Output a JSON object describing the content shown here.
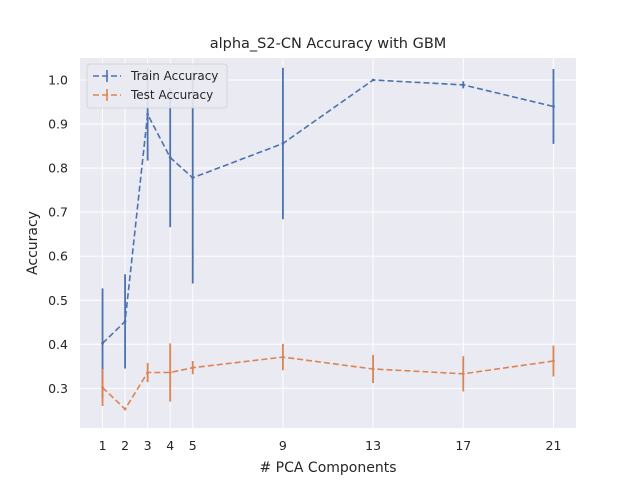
{
  "chart_data": {
    "type": "line",
    "title": "alpha_S2-CN Accuracy with GBM",
    "xlabel": "# PCA Components",
    "ylabel": "Accuracy",
    "x": [
      1,
      2,
      3,
      4,
      5,
      9,
      13,
      17,
      21
    ],
    "x_ticks": [
      1,
      2,
      3,
      4,
      5,
      9,
      13,
      17,
      21
    ],
    "y_ticks": [
      0.3,
      0.4,
      0.5,
      0.6,
      0.7,
      0.8,
      0.9,
      1.0
    ],
    "y_tick_labels": [
      "0.3",
      "0.4",
      "0.5",
      "0.6",
      "0.7",
      "0.8",
      "0.9",
      "1.0"
    ],
    "xlim": [
      0.0,
      22.0
    ],
    "ylim": [
      0.21,
      1.05
    ],
    "grid": true,
    "legend_position": "top-left",
    "background": "#eaeaf2",
    "series": [
      {
        "name": "Train Accuracy",
        "color": "#4c72b0",
        "values": [
          0.402,
          0.452,
          0.922,
          0.824,
          0.778,
          0.856,
          1.0,
          0.989,
          0.94
        ],
        "errors": [
          0.125,
          0.107,
          0.105,
          0.158,
          0.24,
          0.172,
          0.0,
          0.008,
          0.085
        ]
      },
      {
        "name": "Test Accuracy",
        "color": "#dd8452",
        "values": [
          0.302,
          0.253,
          0.336,
          0.336,
          0.347,
          0.371,
          0.344,
          0.333,
          0.362
        ],
        "errors": [
          0.042,
          0.0,
          0.022,
          0.066,
          0.015,
          0.03,
          0.032,
          0.04,
          0.035
        ]
      }
    ]
  }
}
